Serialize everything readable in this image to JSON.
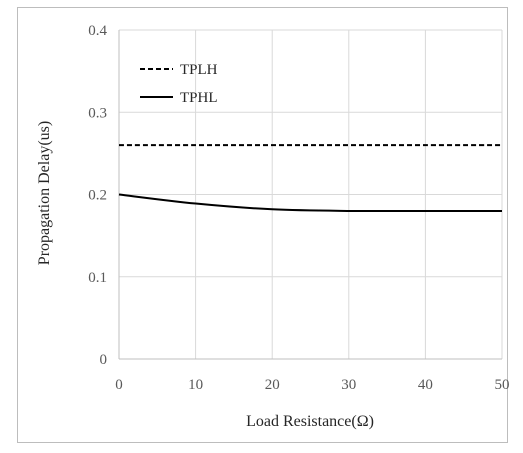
{
  "chart_data": {
    "type": "line",
    "title": "",
    "xlabel": "Load Resistance(Ω)",
    "ylabel": "Propagation Delay(us)",
    "xlim": [
      0,
      50
    ],
    "ylim": [
      0,
      0.4
    ],
    "x_ticks": [
      "0",
      "10",
      "20",
      "30",
      "40",
      "50"
    ],
    "y_ticks": [
      "0",
      "0.1",
      "0.2",
      "0.3",
      "0.4"
    ],
    "grid": true,
    "legend_position": "top-left",
    "series": [
      {
        "name": "TPLH",
        "style": "dashed",
        "color": "#000000",
        "x": [
          0,
          10,
          20,
          30,
          40,
          50
        ],
        "y": [
          0.26,
          0.26,
          0.26,
          0.26,
          0.26,
          0.26
        ]
      },
      {
        "name": "TPHL",
        "style": "solid",
        "color": "#000000",
        "x": [
          0,
          10,
          20,
          30,
          40,
          50
        ],
        "y": [
          0.2,
          0.189,
          0.182,
          0.18,
          0.18,
          0.18
        ]
      }
    ]
  }
}
